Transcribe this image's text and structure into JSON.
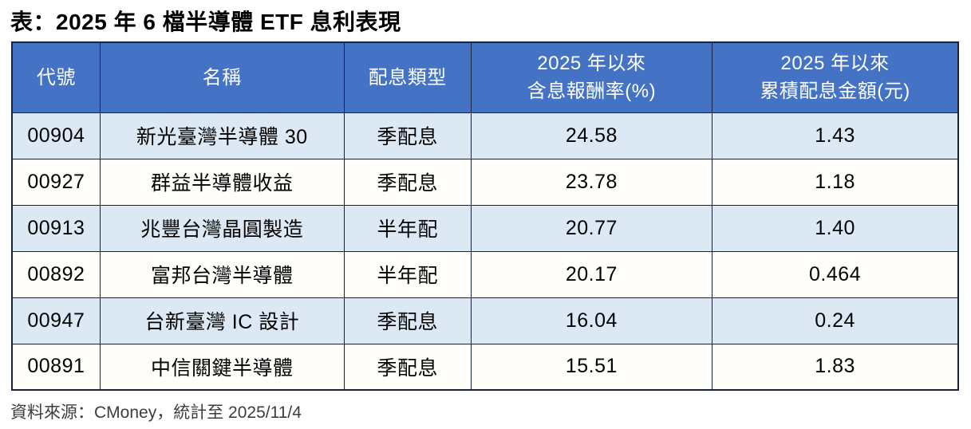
{
  "page": {
    "title": "表：2025 年 6 檔半導體 ETF 息利表現",
    "source_note": "資料來源：CMoney，統計至 2025/11/4"
  },
  "colors": {
    "header_bg": "#4472C4",
    "header_text": "#FFFFFF",
    "row_alt_bg": "#DCE9F5",
    "row_bg": "#FFFEFB",
    "grid_border": "#17233C",
    "title_text": "#000000",
    "source_text": "#3D3D3D"
  },
  "chart_data": {
    "type": "table",
    "title": "2025 年 6 檔半導體 ETF 息利表現",
    "columns": [
      "代號",
      "名稱",
      "配息類型",
      "2025 年以來含息報酬率(%)",
      "2025 年以來累積配息金額(元)"
    ],
    "header_lines": [
      [
        "代號"
      ],
      [
        "名稱"
      ],
      [
        "配息類型"
      ],
      [
        "2025 年以來",
        "含息報酬率(%)"
      ],
      [
        "2025 年以來",
        "累積配息金額(元)"
      ]
    ],
    "rows": [
      [
        "00904",
        "新光臺灣半導體 30",
        "季配息",
        "24.58",
        "1.43"
      ],
      [
        "00927",
        "群益半導體收益",
        "季配息",
        "23.78",
        "1.18"
      ],
      [
        "00913",
        "兆豐台灣晶圓製造",
        "半年配",
        "20.77",
        "1.40"
      ],
      [
        "00892",
        "富邦台灣半導體",
        "半年配",
        "20.17",
        "0.464"
      ],
      [
        "00947",
        "台新臺灣 IC 設計",
        "季配息",
        "16.04",
        "0.24"
      ],
      [
        "00891",
        "中信關鍵半導體",
        "季配息",
        "15.51",
        "1.83"
      ]
    ]
  }
}
